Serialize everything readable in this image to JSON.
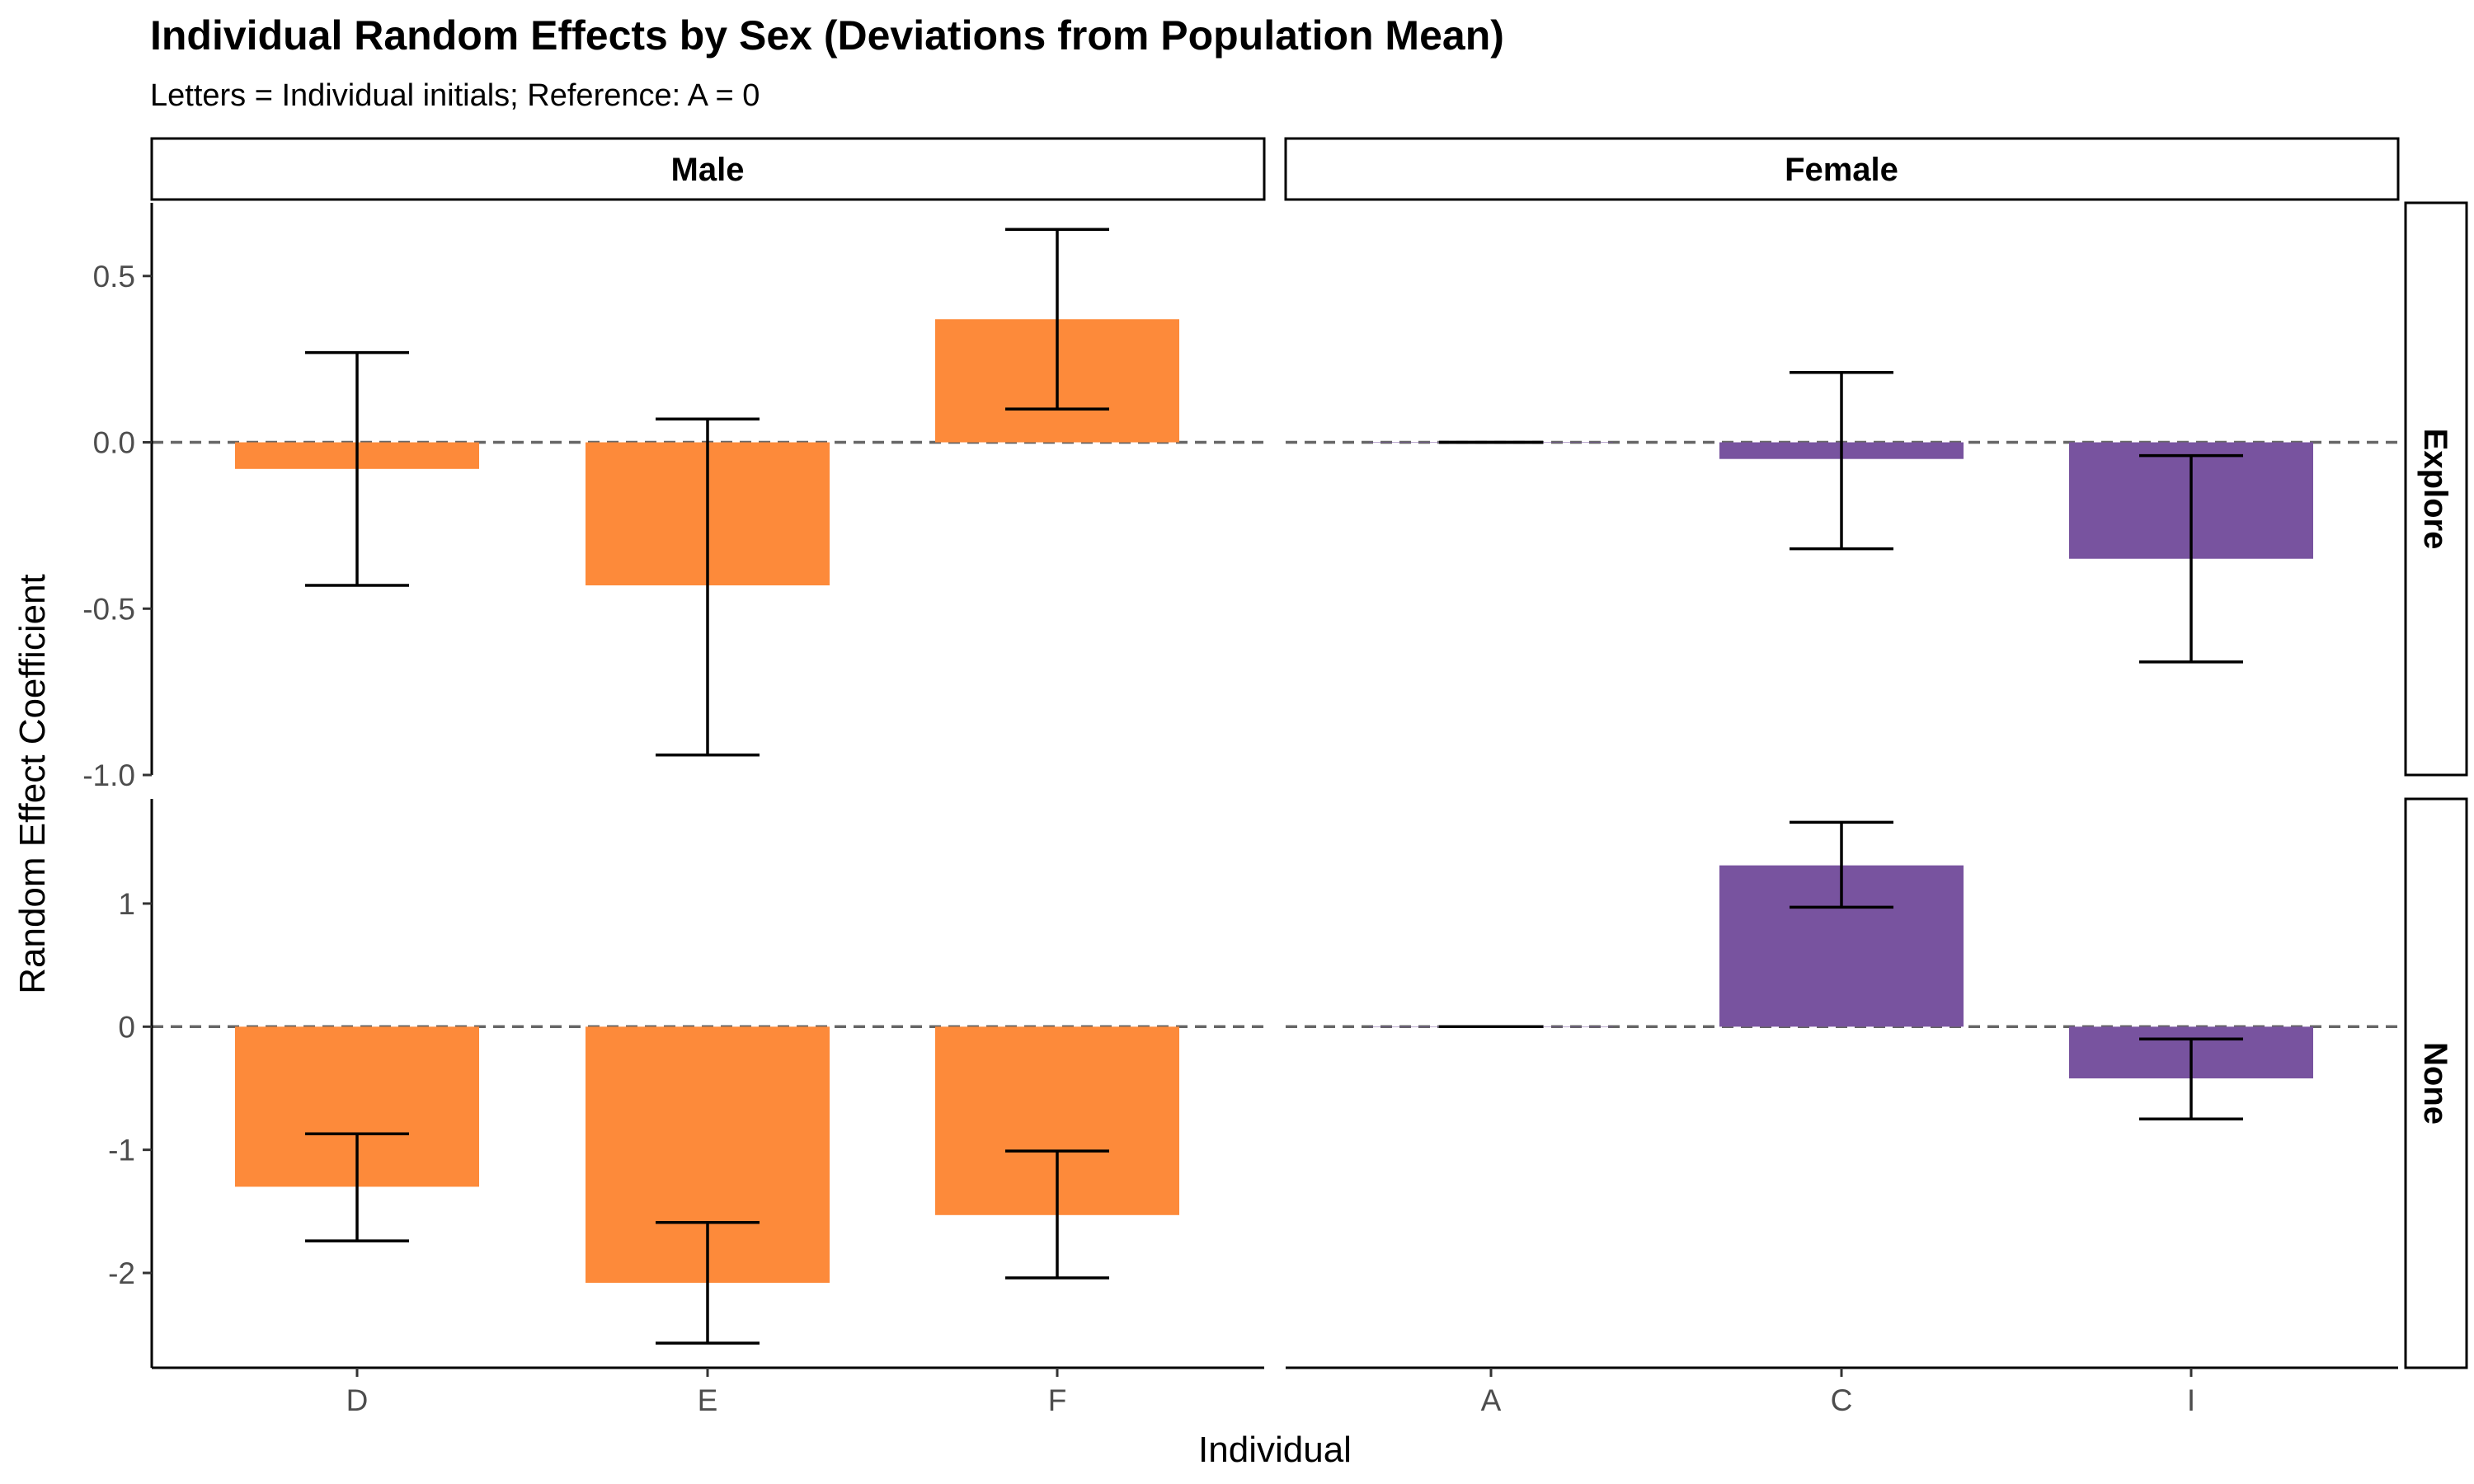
{
  "title": "Individual Random Effects by Sex (Deviations from Population Mean)",
  "subtitle": "Letters = Individual initials; Reference: A = 0",
  "colors": {
    "Male": "#FD8A3A",
    "Female": "#78539F",
    "reference_line": "#666666"
  },
  "chart_data": {
    "type": "bar",
    "title": "Individual Random Effects by Sex (Deviations from Population Mean)",
    "subtitle": "Letters = Individual initials; Reference: A = 0",
    "xlabel": "Individual",
    "ylabel": "Random Effect Coefficient",
    "grid": false,
    "facet_columns": [
      "Male",
      "Female"
    ],
    "facet_rows": [
      "Explore",
      "None"
    ],
    "categories": {
      "Male": [
        "D",
        "E",
        "F"
      ],
      "Female": [
        "A",
        "C",
        "I"
      ]
    },
    "panels": [
      {
        "row": "Explore",
        "column": "Male",
        "ylim": [
          -1.0,
          0.72
        ],
        "yticks": [
          -1.0,
          -0.5,
          0.0,
          0.5
        ],
        "ytick_labels": [
          "-1.0",
          "-0.5",
          "0.0",
          "0.5"
        ],
        "bars": [
          {
            "individual": "D",
            "value": -0.08,
            "lower": -0.43,
            "upper": 0.27
          },
          {
            "individual": "E",
            "value": -0.43,
            "lower": -0.94,
            "upper": 0.07
          },
          {
            "individual": "F",
            "value": 0.37,
            "lower": 0.1,
            "upper": 0.64
          }
        ]
      },
      {
        "row": "Explore",
        "column": "Female",
        "ylim": [
          -1.0,
          0.72
        ],
        "bars": [
          {
            "individual": "A",
            "value": 0.0,
            "lower": 0.0,
            "upper": 0.0
          },
          {
            "individual": "C",
            "value": -0.05,
            "lower": -0.32,
            "upper": 0.21
          },
          {
            "individual": "I",
            "value": -0.35,
            "lower": -0.66,
            "upper": -0.04
          }
        ]
      },
      {
        "row": "None",
        "column": "Male",
        "ylim": [
          -2.77,
          1.85
        ],
        "yticks": [
          -2,
          -1,
          0,
          1
        ],
        "ytick_labels": [
          "-2",
          "-1",
          "0",
          "1"
        ],
        "bars": [
          {
            "individual": "D",
            "value": -1.3,
            "lower": -1.74,
            "upper": -0.87
          },
          {
            "individual": "E",
            "value": -2.08,
            "lower": -2.57,
            "upper": -1.59
          },
          {
            "individual": "F",
            "value": -1.53,
            "lower": -2.04,
            "upper": -1.01
          }
        ]
      },
      {
        "row": "None",
        "column": "Female",
        "ylim": [
          -2.77,
          1.85
        ],
        "bars": [
          {
            "individual": "A",
            "value": 0.0,
            "lower": 0.0,
            "upper": 0.0
          },
          {
            "individual": "C",
            "value": 1.31,
            "lower": 0.97,
            "upper": 1.66
          },
          {
            "individual": "I",
            "value": -0.42,
            "lower": -0.75,
            "upper": -0.1
          }
        ]
      }
    ]
  }
}
